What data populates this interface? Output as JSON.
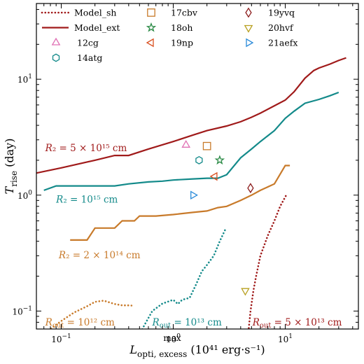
{
  "chart_data": {
    "type": "line",
    "xscale": "log",
    "yscale": "log",
    "xlim": [
      0.06,
      45
    ],
    "ylim": [
      0.07,
      45
    ],
    "xlabel_main": "L",
    "xlabel_sup": "max",
    "xlabel_sub": "opti, excess",
    "xlabel_units": "(10⁴¹ erg·s⁻¹)",
    "ylabel_main": "T",
    "ylabel_sub": "rise",
    "ylabel_units": "(day)",
    "x_ticks": [
      {
        "value": 0.1,
        "base": "10",
        "exp": "−1"
      },
      {
        "value": 1,
        "base": "10",
        "exp": "0"
      },
      {
        "value": 10,
        "base": "10",
        "exp": "1"
      }
    ],
    "y_ticks": [
      {
        "value": 0.1,
        "base": "10",
        "exp": "−1"
      },
      {
        "value": 1,
        "base": "10",
        "exp": "0"
      },
      {
        "value": 10,
        "base": "10",
        "exp": "1"
      }
    ],
    "legend": {
      "position": "top-left",
      "model_entries": [
        {
          "label": "Model_sh",
          "style": "dotted",
          "color": "#a01a1a"
        },
        {
          "label": "Model_ext",
          "style": "solid",
          "color": "#a01a1a"
        }
      ]
    },
    "series_ext": [
      {
        "label_text": "R₂ = 5 × 10¹⁵ cm",
        "label_pos": [
          0.072,
          2.4
        ],
        "color": "#a01a1a",
        "points": [
          [
            0.06,
            1.55
          ],
          [
            0.1,
            1.72
          ],
          [
            0.2,
            2.0
          ],
          [
            0.3,
            2.2
          ],
          [
            0.4,
            2.2
          ],
          [
            0.6,
            2.5
          ],
          [
            1,
            2.9
          ],
          [
            1.5,
            3.3
          ],
          [
            2,
            3.6
          ],
          [
            3,
            3.95
          ],
          [
            4,
            4.3
          ],
          [
            5,
            4.7
          ],
          [
            6,
            5.1
          ],
          [
            8,
            5.9
          ],
          [
            10,
            6.6
          ],
          [
            12,
            7.8
          ],
          [
            15,
            10.2
          ],
          [
            18,
            11.9
          ],
          [
            20,
            12.5
          ],
          [
            25,
            13.5
          ],
          [
            30,
            14.5
          ],
          [
            35,
            15.3
          ]
        ]
      },
      {
        "label_text": "R₂ = 10¹⁵ cm",
        "label_pos": [
          0.09,
          0.86
        ],
        "color": "#138a8a",
        "points": [
          [
            0.07,
            1.1
          ],
          [
            0.09,
            1.2
          ],
          [
            0.2,
            1.2
          ],
          [
            0.3,
            1.2
          ],
          [
            0.4,
            1.25
          ],
          [
            0.6,
            1.3
          ],
          [
            0.8,
            1.32
          ],
          [
            1,
            1.35
          ],
          [
            1.5,
            1.38
          ],
          [
            2,
            1.4
          ],
          [
            2.5,
            1.4
          ],
          [
            3,
            1.5
          ],
          [
            4,
            2.1
          ],
          [
            5,
            2.5
          ],
          [
            6,
            2.9
          ],
          [
            8,
            3.6
          ],
          [
            10,
            4.6
          ],
          [
            12,
            5.3
          ],
          [
            15,
            6.2
          ],
          [
            20,
            6.7
          ],
          [
            25,
            7.2
          ],
          [
            30,
            7.7
          ]
        ]
      },
      {
        "label_text": "R₂ = 2 × 10¹⁴ cm",
        "label_pos": [
          0.095,
          0.285
        ],
        "color": "#c87a2a",
        "points": [
          [
            0.12,
            0.41
          ],
          [
            0.17,
            0.41
          ],
          [
            0.2,
            0.52
          ],
          [
            0.3,
            0.52
          ],
          [
            0.35,
            0.6
          ],
          [
            0.45,
            0.6
          ],
          [
            0.5,
            0.66
          ],
          [
            0.7,
            0.66
          ],
          [
            1.0,
            0.68
          ],
          [
            1.5,
            0.71
          ],
          [
            2,
            0.73
          ],
          [
            2.5,
            0.78
          ],
          [
            3,
            0.8
          ],
          [
            4,
            0.9
          ],
          [
            5,
            1.0
          ],
          [
            6,
            1.1
          ],
          [
            8,
            1.25
          ],
          [
            10,
            1.8
          ],
          [
            11,
            1.8
          ]
        ]
      }
    ],
    "series_sh": [
      {
        "label_text": "R_out = 10¹² cm",
        "label_pos": [
          0.072,
          0.075
        ],
        "color": "#c87a2a",
        "points": [
          [
            0.065,
            0.055
          ],
          [
            0.08,
            0.07
          ],
          [
            0.1,
            0.082
          ],
          [
            0.13,
            0.097
          ],
          [
            0.17,
            0.11
          ],
          [
            0.2,
            0.12
          ],
          [
            0.24,
            0.123
          ],
          [
            0.3,
            0.115
          ],
          [
            0.35,
            0.112
          ],
          [
            0.4,
            0.112
          ],
          [
            0.45,
            0.111
          ]
        ]
      },
      {
        "label_text": "R_out = 10¹³ cm",
        "label_pos": [
          0.65,
          0.075
        ],
        "color": "#138a8a",
        "points": [
          [
            0.47,
            0.055
          ],
          [
            0.55,
            0.075
          ],
          [
            0.65,
            0.1
          ],
          [
            0.8,
            0.116
          ],
          [
            1.0,
            0.125
          ],
          [
            1.1,
            0.115
          ],
          [
            1.2,
            0.125
          ],
          [
            1.4,
            0.13
          ],
          [
            1.6,
            0.17
          ],
          [
            1.8,
            0.22
          ],
          [
            2.0,
            0.25
          ],
          [
            2.3,
            0.3
          ],
          [
            2.6,
            0.4
          ],
          [
            2.9,
            0.5
          ]
        ]
      },
      {
        "label_text": "R_out = 5 × 10¹³ cm",
        "label_pos": [
          5.1,
          0.075
        ],
        "color": "#a01a1a",
        "points": [
          [
            4.6,
            0.055
          ],
          [
            4.9,
            0.1
          ],
          [
            5.2,
            0.15
          ],
          [
            5.5,
            0.2
          ],
          [
            6,
            0.3
          ],
          [
            7,
            0.45
          ],
          [
            8,
            0.6
          ],
          [
            9,
            0.8
          ],
          [
            10.2,
            1.0
          ]
        ]
      }
    ],
    "observations": [
      {
        "name": "12cg",
        "marker": "triangle-up",
        "color": "#e070b4",
        "x": 1.3,
        "y": 2.7
      },
      {
        "name": "14atg",
        "marker": "hexagon",
        "color": "#138a8a",
        "x": 1.7,
        "y": 2.0
      },
      {
        "name": "17cbv",
        "marker": "square",
        "color": "#c87a2a",
        "x": 2.0,
        "y": 2.65
      },
      {
        "name": "18oh",
        "marker": "star",
        "color": "#2a8a45",
        "x": 2.6,
        "y": 2.0
      },
      {
        "name": "19np",
        "marker": "triangle-left",
        "color": "#d95020",
        "x": 2.35,
        "y": 1.45
      },
      {
        "name": "19yvq",
        "marker": "diamond",
        "color": "#8b1a1a",
        "x": 4.9,
        "y": 1.15
      },
      {
        "name": "20hvf",
        "marker": "triangle-down",
        "color": "#b8a020",
        "x": 4.4,
        "y": 0.15
      },
      {
        "name": "21aefx",
        "marker": "triangle-right",
        "color": "#2a8ad9",
        "x": 1.5,
        "y": 1.0
      }
    ]
  }
}
